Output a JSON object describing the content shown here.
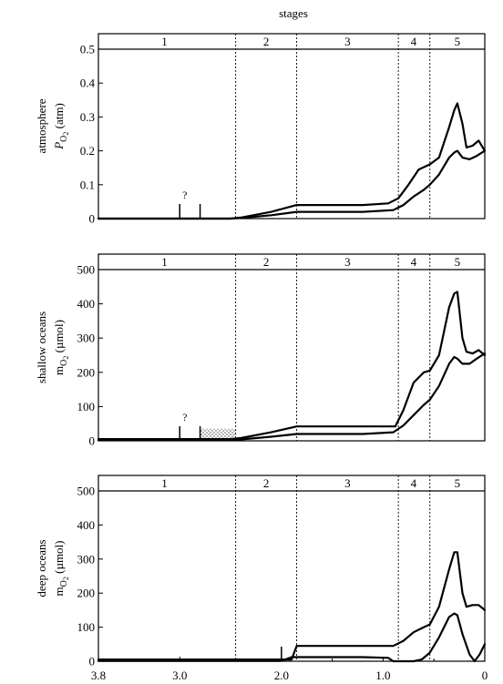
{
  "figure": {
    "top_label": "stages"
  },
  "stages": {
    "labels": [
      "1",
      "2",
      "3",
      "4",
      "5"
    ],
    "boundaries": [
      2.45,
      1.85,
      0.85,
      0.54
    ],
    "centers": [
      3.15,
      2.15,
      1.35,
      0.7,
      0.27
    ]
  },
  "x_axis": {
    "ticks": [
      "3.8",
      "3.0",
      "2.0",
      "1.0",
      "0"
    ],
    "tick_values": [
      3.8,
      3.0,
      2.0,
      1.0,
      0
    ],
    "range": [
      3.8,
      0
    ]
  },
  "chart_data": [
    {
      "type": "line",
      "title": "",
      "ylabel_lines": [
        "atmosphere",
        "P",
        "O2 (atm)"
      ],
      "ylabel_1": "atmosphere",
      "ylabel_2_main": "P",
      "ylabel_2_sub": "O",
      "ylabel_2_subsub": "2",
      "ylabel_2_unit": "(atm)",
      "ylim": [
        0,
        0.5
      ],
      "yticks": [
        "0",
        "0.1",
        "0.2",
        "0.3",
        "0.4",
        "0.5"
      ],
      "ytick_values": [
        0,
        0.1,
        0.2,
        0.3,
        0.4,
        0.5
      ],
      "question_mark": "?",
      "question_x": 2.95,
      "spikes": [
        3.0,
        2.8
      ],
      "series": [
        {
          "x": [
            3.8,
            2.5,
            2.4,
            2.1,
            1.85,
            1.2,
            0.95,
            0.85,
            0.75,
            0.65,
            0.54,
            0.45,
            0.35,
            0.3,
            0.27,
            0.22,
            0.18,
            0.12,
            0.06,
            0.0
          ],
          "y": [
            0.0,
            0.0,
            0.003,
            0.02,
            0.04,
            0.04,
            0.045,
            0.06,
            0.1,
            0.145,
            0.16,
            0.18,
            0.27,
            0.32,
            0.34,
            0.28,
            0.21,
            0.215,
            0.23,
            0.2
          ]
        },
        {
          "x": [
            3.8,
            2.5,
            2.4,
            2.1,
            1.85,
            1.2,
            0.9,
            0.8,
            0.7,
            0.6,
            0.54,
            0.45,
            0.35,
            0.3,
            0.27,
            0.22,
            0.15,
            0.08,
            0.0
          ],
          "y": [
            0.0,
            0.0,
            0.002,
            0.01,
            0.02,
            0.02,
            0.025,
            0.04,
            0.065,
            0.085,
            0.1,
            0.13,
            0.18,
            0.195,
            0.2,
            0.18,
            0.175,
            0.185,
            0.2
          ]
        }
      ]
    },
    {
      "type": "line",
      "title": "",
      "ylabel_lines": [
        "shallow oceans",
        "m",
        "O2 (µmol)"
      ],
      "ylabel_1": "shallow oceans",
      "ylabel_2_main": "m",
      "ylabel_2_sub": "O",
      "ylabel_2_subsub": "2",
      "ylabel_2_unit": "(µmol)",
      "ylim": [
        0,
        500
      ],
      "yticks": [
        "0",
        "100",
        "200",
        "300",
        "400",
        "500"
      ],
      "ytick_values": [
        0,
        100,
        200,
        300,
        400,
        500
      ],
      "question_mark": "?",
      "question_x": 2.95,
      "spikes": [
        3.0,
        2.8
      ],
      "shaded_region": [
        2.8,
        2.45
      ],
      "series": [
        {
          "x": [
            3.8,
            2.5,
            2.4,
            2.1,
            1.85,
            1.2,
            0.88,
            0.8,
            0.7,
            0.6,
            0.54,
            0.45,
            0.35,
            0.3,
            0.27,
            0.22,
            0.18,
            0.12,
            0.06,
            0.0
          ],
          "y": [
            5,
            5,
            8,
            25,
            42,
            42,
            42,
            90,
            170,
            200,
            205,
            250,
            390,
            430,
            435,
            300,
            260,
            255,
            265,
            250
          ]
        },
        {
          "x": [
            3.8,
            2.5,
            2.4,
            2.1,
            1.85,
            1.2,
            0.9,
            0.8,
            0.7,
            0.6,
            0.54,
            0.45,
            0.35,
            0.3,
            0.27,
            0.22,
            0.15,
            0.08,
            0.0
          ],
          "y": [
            2,
            2,
            4,
            12,
            20,
            20,
            25,
            45,
            75,
            105,
            120,
            160,
            225,
            245,
            240,
            225,
            225,
            240,
            255
          ]
        }
      ]
    },
    {
      "type": "line",
      "title": "",
      "ylabel_lines": [
        "deep oceans",
        "m",
        "O2 (µmol)"
      ],
      "ylabel_1": "deep oceans",
      "ylabel_2_main": "m",
      "ylabel_2_sub": "O",
      "ylabel_2_subsub": "2",
      "ylabel_2_unit": "(µmol)",
      "ylim": [
        0,
        500
      ],
      "yticks": [
        "0",
        "100",
        "200",
        "300",
        "400",
        "500"
      ],
      "ytick_values": [
        0,
        100,
        200,
        300,
        400,
        500
      ],
      "spikes": [
        2.0
      ],
      "series": [
        {
          "x": [
            3.8,
            2.5,
            2.0,
            1.9,
            1.85,
            1.2,
            0.9,
            0.8,
            0.7,
            0.6,
            0.54,
            0.45,
            0.35,
            0.3,
            0.27,
            0.22,
            0.18,
            0.12,
            0.06,
            0.0
          ],
          "y": [
            5,
            5,
            5,
            5,
            45,
            45,
            45,
            60,
            85,
            100,
            108,
            160,
            270,
            320,
            320,
            200,
            160,
            165,
            165,
            150
          ]
        },
        {
          "x": [
            3.8,
            2.5,
            2.0,
            1.9,
            1.85,
            1.2,
            0.95,
            0.9,
            0.8,
            0.7,
            0.62,
            0.54,
            0.45,
            0.35,
            0.3,
            0.27,
            0.22,
            0.15,
            0.1,
            0.05,
            0.0
          ],
          "y": [
            1,
            1,
            1,
            12,
            12,
            12,
            10,
            0,
            0,
            0,
            5,
            25,
            70,
            130,
            140,
            135,
            80,
            20,
            0,
            20,
            50
          ]
        }
      ]
    }
  ]
}
